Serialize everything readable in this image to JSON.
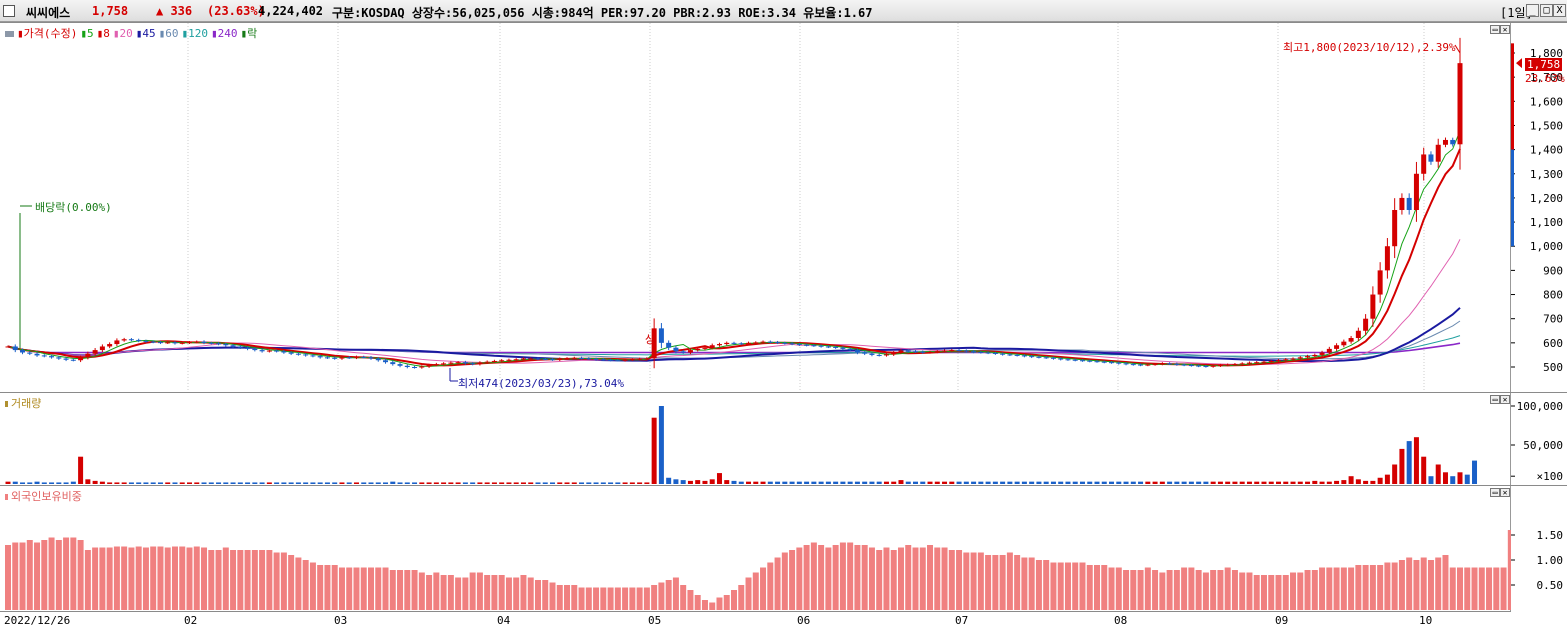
{
  "header": {
    "stock_name": "씨씨에스",
    "price": "1,758",
    "change": "▲ 336",
    "change_pct": "(23.63%)",
    "volume": "4,224,402",
    "info": "구분:KOSDAQ 상장수:56,025,056 시총:984억 PER:97.20 PBR:2.93 ROE:3.34 유보율:1.67",
    "period": "[1일]",
    "btn_min": "_",
    "btn_max": "□",
    "btn_close": "X"
  },
  "price_pane": {
    "legend": [
      {
        "label": "가격(수정)",
        "color": "#d40000"
      },
      {
        "label": "5",
        "color": "#16a316"
      },
      {
        "label": "8",
        "color": "#d40000"
      },
      {
        "label": "20",
        "color": "#e060b0"
      },
      {
        "label": "45",
        "color": "#1a1aa0"
      },
      {
        "label": "60",
        "color": "#6a8ab0"
      },
      {
        "label": "120",
        "color": "#20a0a0"
      },
      {
        "label": "240",
        "color": "#8a28c8"
      },
      {
        "label": "락",
        "color": "#167a16"
      }
    ],
    "y_labels": [
      "1,800",
      "1,700",
      "1,600",
      "1,500",
      "1,400",
      "1,300",
      "1,200",
      "1,100",
      "1,000",
      "900",
      "800",
      "700",
      "600",
      "500"
    ],
    "current_price_tag": "1,758",
    "current_pct_tag": "23.63%",
    "high_annotation": "최고1,800(2023/10/12),2.39%",
    "low_annotation": "최저474(2023/03/23),73.04%",
    "dividend_annotation": "배당락(0.00%)",
    "upper_limit_mark": "상"
  },
  "volume_pane": {
    "legend": "거래량",
    "y_labels": [
      "100,000",
      "50,000",
      "×100"
    ]
  },
  "foreign_pane": {
    "legend": "외국인보유비중",
    "y_labels": [
      "1.50",
      "1.00",
      "0.50"
    ]
  },
  "x_axis": {
    "labels": [
      "2022/12/26",
      "02",
      "03",
      "04",
      "05",
      "06",
      "07",
      "08",
      "09",
      "10"
    ]
  },
  "chart_data": {
    "type": "candlestick",
    "period": "daily",
    "price_range": [
      450,
      1850
    ],
    "close_approx": [
      585,
      570,
      560,
      555,
      548,
      545,
      540,
      535,
      530,
      528,
      540,
      555,
      570,
      585,
      595,
      610,
      615,
      612,
      608,
      605,
      603,
      600,
      602,
      598,
      600,
      603,
      605,
      600,
      598,
      595,
      590,
      585,
      580,
      575,
      570,
      565,
      568,
      565,
      560,
      555,
      552,
      548,
      545,
      540,
      538,
      535,
      540,
      538,
      542,
      540,
      535,
      528,
      520,
      512,
      505,
      500,
      498,
      502,
      508,
      512,
      515,
      518,
      520,
      515,
      512,
      518,
      522,
      525,
      528,
      530,
      532,
      535,
      535,
      533,
      532,
      530,
      534,
      536,
      538,
      536,
      534,
      532,
      530,
      528,
      527,
      530,
      532,
      534,
      536,
      660,
      600,
      580,
      565,
      560,
      570,
      575,
      580,
      590,
      595,
      600,
      598,
      596,
      600,
      602,
      605,
      603,
      600,
      598,
      595,
      592,
      590,
      588,
      585,
      583,
      580,
      575,
      570,
      560,
      555,
      550,
      548,
      552,
      560,
      568,
      565,
      563,
      560,
      562,
      565,
      568,
      570,
      568,
      565,
      562,
      560,
      558,
      555,
      552,
      550,
      548,
      545,
      542,
      540,
      538,
      535,
      532,
      530,
      528,
      526,
      524,
      522,
      520,
      518,
      515,
      512,
      510,
      508,
      510,
      512,
      515,
      513,
      510,
      508,
      506,
      504,
      502,
      505,
      508,
      510,
      512,
      515,
      518,
      520,
      522,
      525,
      528,
      532,
      535,
      540,
      545,
      550,
      560,
      575,
      590,
      605,
      620,
      650,
      700,
      800,
      900,
      1000,
      1150,
      1200,
      1150,
      1300,
      1380,
      1350,
      1420,
      1440,
      1422,
      1758
    ],
    "volume_relative": [
      3,
      3,
      2,
      2,
      3,
      2,
      2,
      2,
      2,
      3,
      35,
      6,
      4,
      3,
      2,
      2,
      2,
      2,
      2,
      2,
      2,
      2,
      2,
      2,
      2,
      2,
      2,
      2,
      2,
      2,
      2,
      2,
      2,
      2,
      2,
      2,
      2,
      2,
      2,
      2,
      2,
      2,
      2,
      2,
      2,
      2,
      2,
      2,
      2,
      2,
      2,
      2,
      2,
      3,
      2,
      2,
      2,
      2,
      2,
      2,
      2,
      2,
      2,
      2,
      2,
      2,
      2,
      2,
      2,
      2,
      2,
      2,
      2,
      2,
      2,
      2,
      2,
      2,
      2,
      2,
      2,
      2,
      2,
      2,
      2,
      2,
      2,
      2,
      2,
      85,
      100,
      8,
      6,
      5,
      4,
      5,
      4,
      6,
      14,
      5,
      4,
      3,
      3,
      3,
      3,
      3,
      3,
      3,
      3,
      3,
      3,
      3,
      3,
      3,
      3,
      3,
      3,
      3,
      3,
      3,
      3,
      3,
      3,
      5,
      3,
      3,
      3,
      3,
      3,
      3,
      3,
      3,
      3,
      3,
      3,
      3,
      3,
      3,
      3,
      3,
      3,
      3,
      3,
      3,
      3,
      3,
      3,
      3,
      3,
      3,
      3,
      3,
      3,
      3,
      3,
      3,
      3,
      3,
      3,
      3,
      3,
      3,
      3,
      3,
      3,
      3,
      3,
      3,
      3,
      3,
      3,
      3,
      3,
      3,
      3,
      3,
      3,
      3,
      3,
      3,
      4,
      3,
      3,
      4,
      5,
      10,
      6,
      4,
      4,
      8,
      12,
      25,
      45,
      55,
      60,
      35,
      10,
      25,
      15,
      10,
      15,
      12,
      30
    ],
    "foreign_ratio_percent": [
      1.3,
      1.35,
      1.35,
      1.4,
      1.35,
      1.4,
      1.45,
      1.4,
      1.45,
      1.45,
      1.4,
      1.2,
      1.25,
      1.25,
      1.25,
      1.27,
      1.27,
      1.25,
      1.27,
      1.25,
      1.27,
      1.27,
      1.25,
      1.27,
      1.27,
      1.25,
      1.27,
      1.25,
      1.2,
      1.2,
      1.25,
      1.2,
      1.2,
      1.2,
      1.2,
      1.2,
      1.2,
      1.15,
      1.15,
      1.1,
      1.05,
      1.0,
      0.95,
      0.9,
      0.9,
      0.9,
      0.85,
      0.85,
      0.85,
      0.85,
      0.85,
      0.85,
      0.85,
      0.8,
      0.8,
      0.8,
      0.8,
      0.75,
      0.7,
      0.75,
      0.7,
      0.7,
      0.65,
      0.65,
      0.75,
      0.75,
      0.7,
      0.7,
      0.7,
      0.65,
      0.65,
      0.7,
      0.65,
      0.6,
      0.6,
      0.55,
      0.5,
      0.5,
      0.5,
      0.45,
      0.45,
      0.45,
      0.45,
      0.45,
      0.45,
      0.45,
      0.45,
      0.45,
      0.45,
      0.5,
      0.55,
      0.6,
      0.65,
      0.5,
      0.4,
      0.3,
      0.2,
      0.15,
      0.25,
      0.3,
      0.4,
      0.5,
      0.65,
      0.75,
      0.85,
      0.95,
      1.05,
      1.15,
      1.2,
      1.25,
      1.3,
      1.35,
      1.3,
      1.25,
      1.3,
      1.35,
      1.35,
      1.3,
      1.3,
      1.25,
      1.2,
      1.25,
      1.2,
      1.25,
      1.3,
      1.25,
      1.25,
      1.3,
      1.25,
      1.25,
      1.2,
      1.2,
      1.15,
      1.15,
      1.15,
      1.1,
      1.1,
      1.1,
      1.15,
      1.1,
      1.05,
      1.05,
      1.0,
      1.0,
      0.95,
      0.95,
      0.95,
      0.95,
      0.95,
      0.9,
      0.9,
      0.9,
      0.85,
      0.85,
      0.8,
      0.8,
      0.8,
      0.85,
      0.8,
      0.75,
      0.8,
      0.8,
      0.85,
      0.85,
      0.8,
      0.75,
      0.8,
      0.8,
      0.85,
      0.8,
      0.75,
      0.75,
      0.7,
      0.7,
      0.7,
      0.7,
      0.7,
      0.75,
      0.75,
      0.8,
      0.8,
      0.85,
      0.85,
      0.85,
      0.85,
      0.85,
      0.9,
      0.9,
      0.9,
      0.9,
      0.95,
      0.95,
      1.0,
      1.05,
      1.0,
      1.05,
      1.0,
      1.05,
      1.1,
      0.85,
      0.85,
      0.85,
      0.85,
      0.85,
      0.85,
      0.85,
      0.85,
      1.6,
      1.65,
      1.95
    ]
  }
}
